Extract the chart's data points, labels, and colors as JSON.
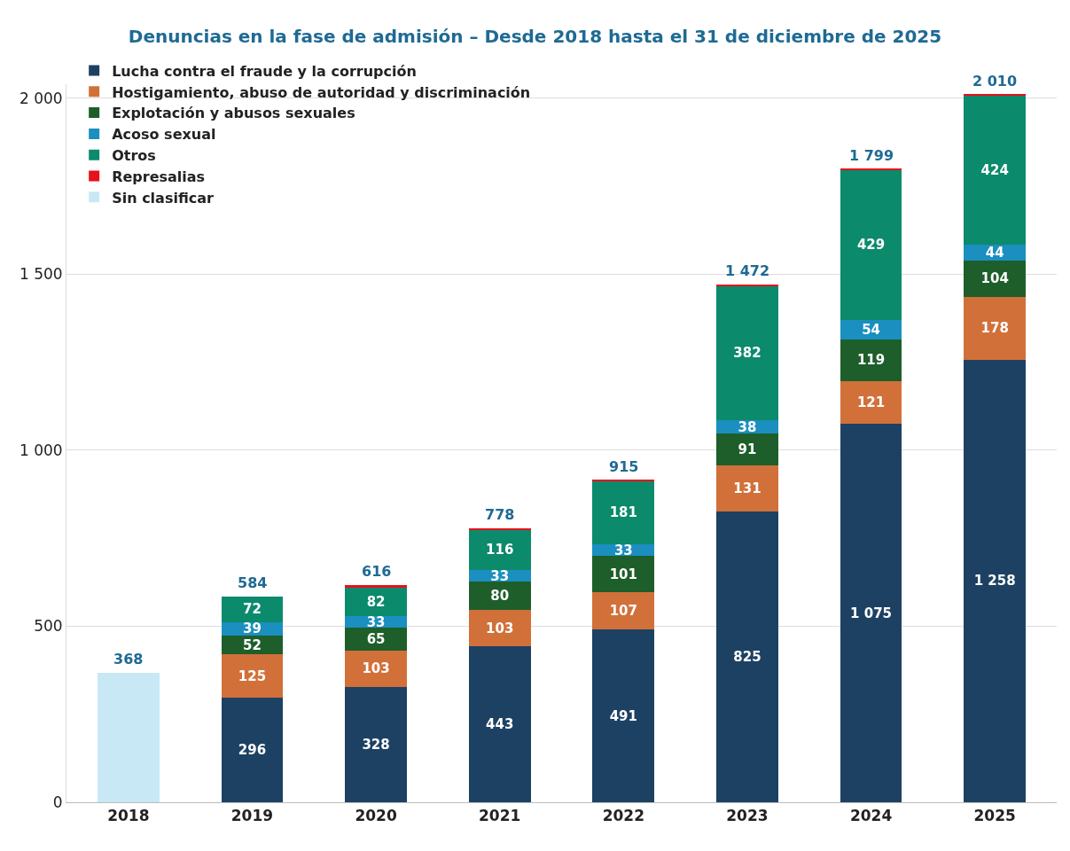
{
  "chart_data": {
    "type": "bar",
    "stacked": true,
    "title": "Denuncias en la fase de admisión – Desde 2018 hasta el 31 de diciembre de 2025",
    "categories": [
      "2018",
      "2019",
      "2020",
      "2021",
      "2022",
      "2023",
      "2024",
      "2025"
    ],
    "series": [
      {
        "name": "Lucha contra el fraude y la corrupción",
        "color": "#1d4163",
        "values": [
          null,
          296,
          328,
          443,
          491,
          825,
          1075,
          1258
        ],
        "value_labels": [
          null,
          "296",
          "328",
          "443",
          "491",
          "825",
          "1 075",
          "1 258"
        ]
      },
      {
        "name": "Hostigamiento, abuso de autoridad y discriminación",
        "color": "#d2703a",
        "values": [
          null,
          125,
          103,
          103,
          107,
          131,
          121,
          178
        ],
        "value_labels": [
          null,
          "125",
          "103",
          "103",
          "107",
          "131",
          "121",
          "178"
        ]
      },
      {
        "name": "Explotación y abusos sexuales",
        "color": "#1e5e2a",
        "values": [
          null,
          52,
          65,
          80,
          101,
          91,
          119,
          104
        ],
        "value_labels": [
          null,
          "52",
          "65",
          "80",
          "101",
          "91",
          "119",
          "104"
        ]
      },
      {
        "name": "Acoso sexual",
        "color": "#1a8fc0",
        "values": [
          null,
          39,
          33,
          33,
          33,
          38,
          54,
          44
        ],
        "value_labels": [
          null,
          "39",
          "33",
          "33",
          "33",
          "38",
          "54",
          "44"
        ]
      },
      {
        "name": "Otros",
        "color": "#0b8a6c",
        "values": [
          null,
          72,
          82,
          116,
          181,
          382,
          429,
          424
        ],
        "value_labels": [
          null,
          "72",
          "82",
          "116",
          "181",
          "382",
          "429",
          "424"
        ]
      },
      {
        "name": "Represalias",
        "color": "#e8101a",
        "values": [
          null,
          0,
          5,
          3,
          2,
          5,
          1,
          2
        ]
      },
      {
        "name": "Sin clasificar",
        "color": "#c9e8f5",
        "values": [
          368,
          null,
          null,
          null,
          null,
          null,
          null,
          null
        ]
      }
    ],
    "totals": [
      "368",
      "584",
      "616",
      "778",
      "915",
      "1 472",
      "1 799",
      "2 010"
    ],
    "ylim": [
      0,
      2040
    ],
    "yticks": [
      0,
      500,
      {
        "value": 1000,
        "label": "1 000"
      },
      {
        "value": 1500,
        "label": "1 500"
      },
      {
        "value": 2000,
        "label": "2 000"
      }
    ],
    "grid": "y",
    "legend": "top left"
  }
}
